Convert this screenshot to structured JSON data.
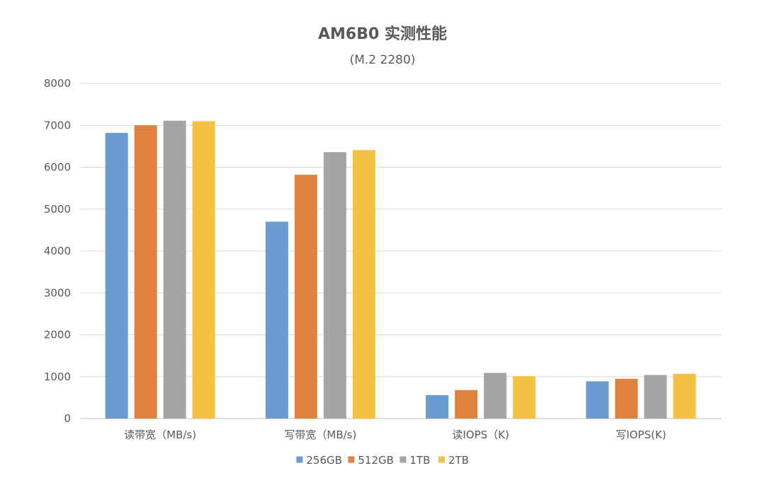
{
  "chart_data": {
    "type": "bar",
    "title": "AM6B0 实测性能",
    "subtitle": "(M.2 2280)",
    "xlabel": "",
    "ylabel": "",
    "ylim": [
      0,
      8000
    ],
    "yticks": [
      0,
      1000,
      2000,
      3000,
      4000,
      5000,
      6000,
      7000,
      8000
    ],
    "grid": true,
    "legend_position": "bottom",
    "categories": [
      "读带宽（MB/s)",
      "写带宽（MB/s)",
      "读IOPS（K)",
      "写IOPS(K)"
    ],
    "series": [
      {
        "name": "256GB",
        "color": "#6a9bd1",
        "values": [
          6820,
          4700,
          560,
          890
        ]
      },
      {
        "name": "512GB",
        "color": "#e0823e",
        "values": [
          7000,
          5820,
          680,
          950
        ]
      },
      {
        "name": "1TB",
        "color": "#a5a5a5",
        "values": [
          7110,
          6360,
          1090,
          1040
        ]
      },
      {
        "name": "2TB",
        "color": "#f3c242",
        "values": [
          7100,
          6410,
          1010,
          1070
        ]
      }
    ]
  }
}
